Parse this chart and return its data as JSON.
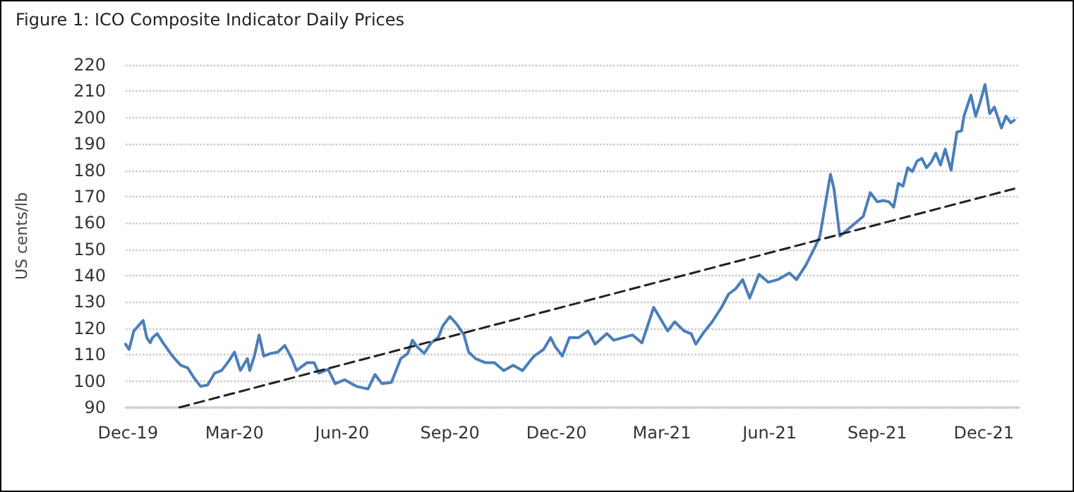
{
  "chart_data": {
    "type": "line",
    "title": "Figure 1: ICO Composite Indicator Daily Prices",
    "ylabel": "US cents/lb",
    "xlim": [
      "2019-11-29",
      "2021-12-31"
    ],
    "xticks": [
      {
        "value": "2019-12-01",
        "label": "Dec-19"
      },
      {
        "value": "2020-03-01",
        "label": "Mar-20"
      },
      {
        "value": "2020-06-01",
        "label": "Jun-20"
      },
      {
        "value": "2020-09-01",
        "label": "Sep-20"
      },
      {
        "value": "2020-12-01",
        "label": "Dec-20"
      },
      {
        "value": "2021-03-01",
        "label": "Mar-21"
      },
      {
        "value": "2021-06-01",
        "label": "Jun-21"
      },
      {
        "value": "2021-09-01",
        "label": "Sep-21"
      },
      {
        "value": "2021-12-01",
        "label": "Dec-21"
      }
    ],
    "ylim": [
      90,
      220
    ],
    "yticks": [
      90,
      100,
      110,
      120,
      130,
      140,
      150,
      160,
      170,
      180,
      190,
      200,
      210,
      220
    ],
    "grid": "y",
    "marker": "none",
    "series": [
      {
        "color": "#4a7ebb",
        "line_style": "solid",
        "x": [
          "2019-11-29",
          "2019-12-02",
          "2019-12-06",
          "2019-12-14",
          "2019-12-17",
          "2019-12-20",
          "2019-12-22",
          "2019-12-26",
          "2019-12-31",
          "2020-01-08",
          "2020-01-15",
          "2020-01-21",
          "2020-01-26",
          "2020-02-01",
          "2020-02-07",
          "2020-02-13",
          "2020-02-19",
          "2020-02-25",
          "2020-03-01",
          "2020-03-06",
          "2020-03-12",
          "2020-03-14",
          "2020-03-18",
          "2020-03-22",
          "2020-03-26",
          "2020-04-01",
          "2020-04-07",
          "2020-04-13",
          "2020-04-19",
          "2020-04-23",
          "2020-05-02",
          "2020-05-08",
          "2020-05-12",
          "2020-05-20",
          "2020-05-26",
          "2020-06-03",
          "2020-06-13",
          "2020-06-23",
          "2020-06-29",
          "2020-07-05",
          "2020-07-13",
          "2020-07-17",
          "2020-07-21",
          "2020-07-27",
          "2020-07-31",
          "2020-08-04",
          "2020-08-10",
          "2020-08-16",
          "2020-08-22",
          "2020-08-26",
          "2020-09-01",
          "2020-09-07",
          "2020-09-13",
          "2020-09-17",
          "2020-09-23",
          "2020-10-01",
          "2020-10-09",
          "2020-10-17",
          "2020-10-25",
          "2020-11-02",
          "2020-11-10",
          "2020-11-12",
          "2020-11-20",
          "2020-11-26",
          "2020-11-30",
          "2020-12-06",
          "2020-12-12",
          "2020-12-20",
          "2020-12-28",
          "2021-01-03",
          "2021-01-13",
          "2021-01-19",
          "2021-01-27",
          "2021-02-04",
          "2021-02-12",
          "2021-02-18",
          "2021-02-22",
          "2021-02-28",
          "2021-03-06",
          "2021-03-12",
          "2021-03-20",
          "2021-03-26",
          "2021-03-30",
          "2021-04-05",
          "2021-04-13",
          "2021-04-21",
          "2021-04-27",
          "2021-05-03",
          "2021-05-09",
          "2021-05-15",
          "2021-05-23",
          "2021-05-31",
          "2021-06-08",
          "2021-06-18",
          "2021-06-24",
          "2021-07-02",
          "2021-07-10",
          "2021-07-14",
          "2021-07-23",
          "2021-07-26",
          "2021-07-31",
          "2021-08-08",
          "2021-08-20",
          "2021-08-26",
          "2021-09-01",
          "2021-09-06",
          "2021-09-11",
          "2021-09-15",
          "2021-09-19",
          "2021-09-23",
          "2021-09-27",
          "2021-10-01",
          "2021-10-05",
          "2021-10-09",
          "2021-10-13",
          "2021-10-17",
          "2021-10-21",
          "2021-10-25",
          "2021-10-29",
          "2021-11-03",
          "2021-11-08",
          "2021-11-12",
          "2021-11-14",
          "2021-11-20",
          "2021-11-24",
          "2021-11-28",
          "2021-12-02",
          "2021-12-06",
          "2021-12-10",
          "2021-12-16",
          "2021-12-20",
          "2021-12-24",
          "2021-12-27"
        ],
        "values": [
          114,
          112,
          119,
          123,
          116.5,
          114.5,
          116.5,
          118,
          114.5,
          109.5,
          106,
          105,
          101.5,
          98,
          98.5,
          103,
          104,
          107.5,
          111,
          104,
          108.5,
          104,
          109.5,
          117.5,
          109.5,
          110.5,
          111,
          113.5,
          108.5,
          104,
          107,
          107,
          103,
          104.5,
          99,
          100.5,
          98,
          97,
          102.5,
          99,
          99.5,
          104,
          108.5,
          110.5,
          115.5,
          113,
          110.5,
          114.5,
          116.5,
          121,
          124.5,
          121.5,
          117.5,
          111,
          108.5,
          107,
          107,
          104,
          106,
          104,
          108.5,
          109.5,
          112,
          116.5,
          113,
          109.5,
          116.5,
          116.5,
          119,
          114,
          118,
          115.5,
          116.5,
          117.5,
          114.5,
          122.5,
          128,
          123.5,
          119,
          122.5,
          119,
          118,
          114,
          118,
          122.5,
          128,
          133,
          135,
          138.5,
          131.5,
          140.5,
          137.5,
          138.5,
          141,
          138.5,
          144,
          151,
          155,
          178.5,
          173,
          155,
          158,
          162.5,
          171.5,
          168,
          168.5,
          168,
          166,
          175,
          174,
          181,
          179.5,
          183.5,
          184.5,
          181,
          183,
          186.5,
          182,
          188,
          180,
          194.5,
          195,
          200.5,
          208.5,
          200.5,
          206,
          212.5,
          201.5,
          204,
          196,
          200.5,
          198,
          199
        ]
      },
      {
        "color": "#222222",
        "line_style": "dashed",
        "x": [
          "2020-01-14",
          "2021-12-27"
        ],
        "values": [
          90,
          173
        ]
      }
    ]
  }
}
